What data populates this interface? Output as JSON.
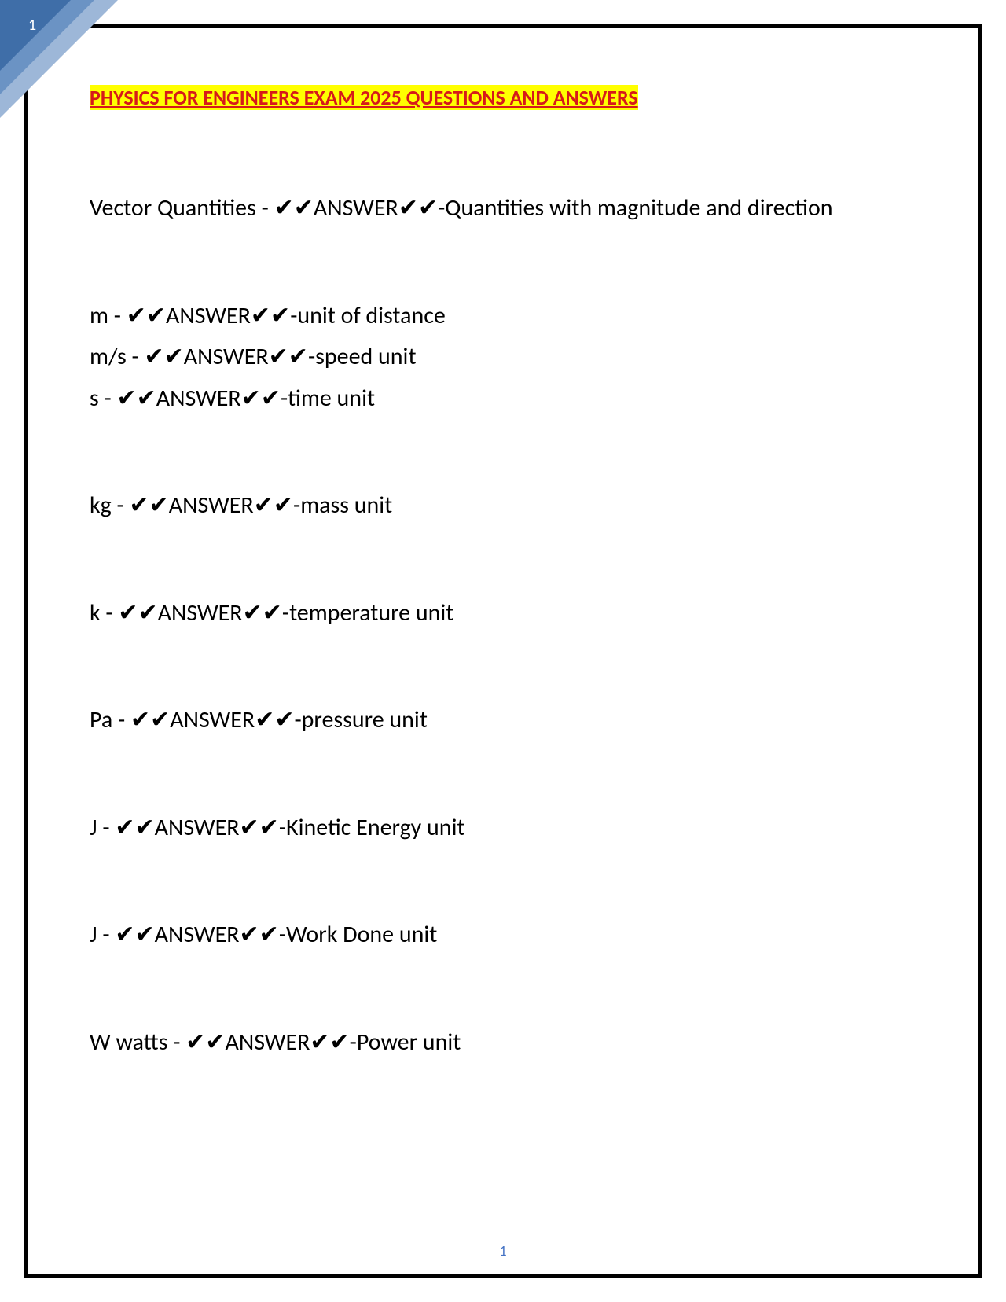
{
  "page": {
    "corner_number": "1",
    "footer_number": "1",
    "title": "PHYSICS FOR ENGINEERS EXAM 2025 QUESTIONS AND ANSWERS",
    "title_bg": "#ffff00",
    "title_color": "#d61a1a",
    "border_color": "#000000",
    "corner_colors": [
      "#3f6ea8",
      "#6b93c4",
      "#9db7d8"
    ],
    "footer_color": "#4472c4",
    "body_font_size": 30,
    "title_font_size": 26,
    "check_glyph": "✔",
    "answer_label": "ANSWER"
  },
  "qa_groups": [
    {
      "items": [
        {
          "term": "Vector Quantities",
          "answer": "Quantities with magnitude and direction"
        }
      ]
    },
    {
      "items": [
        {
          "term": "m",
          "answer": "unit of distance"
        },
        {
          "term": "m/s",
          "answer": "speed unit"
        },
        {
          "term": "s",
          "answer": "time unit"
        }
      ]
    },
    {
      "items": [
        {
          "term": "kg",
          "answer": "mass unit"
        }
      ]
    },
    {
      "items": [
        {
          "term": "k",
          "answer": "temperature unit"
        }
      ]
    },
    {
      "items": [
        {
          "term": "Pa",
          "answer": "pressure unit"
        }
      ]
    },
    {
      "items": [
        {
          "term": "J",
          "answer": "Kinetic Energy unit"
        }
      ]
    },
    {
      "items": [
        {
          "term": "J",
          "answer": "Work Done unit"
        }
      ]
    },
    {
      "items": [
        {
          "term": "W watts",
          "answer": "Power unit"
        }
      ]
    }
  ]
}
